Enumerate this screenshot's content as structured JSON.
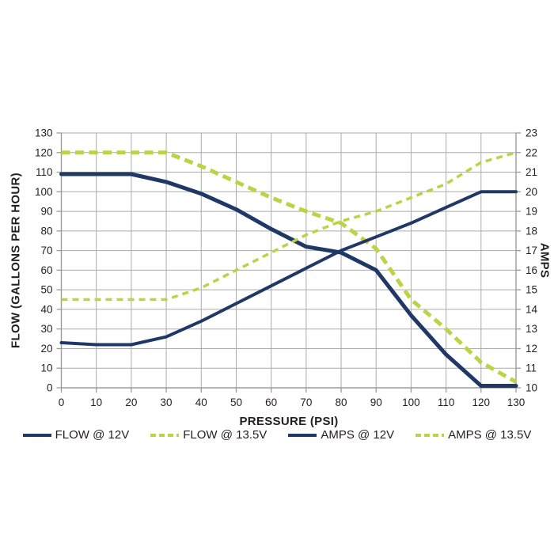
{
  "chart_data": {
    "type": "line",
    "title": "",
    "xlabel": "PRESSURE (PSI)",
    "ylabel_left": "FLOW (GALLONS PER HOUR)",
    "ylabel_right": "AMPS",
    "grid": true,
    "legend_position": "bottom",
    "xlim": [
      0,
      130
    ],
    "ylim_left": [
      0,
      130
    ],
    "ylim_right": [
      10,
      23
    ],
    "x_ticks": [
      0,
      10,
      20,
      30,
      40,
      50,
      60,
      70,
      80,
      90,
      100,
      110,
      120,
      130
    ],
    "y_left_ticks": [
      0,
      10,
      20,
      30,
      40,
      50,
      60,
      70,
      80,
      90,
      100,
      110,
      120,
      130
    ],
    "y_right_ticks": [
      10,
      11,
      12,
      13,
      14,
      15,
      16,
      17,
      18,
      19,
      20,
      21,
      22,
      23
    ],
    "x": [
      0,
      10,
      20,
      30,
      40,
      50,
      60,
      70,
      80,
      90,
      100,
      110,
      120,
      130
    ],
    "series": [
      {
        "id": "flow-12v",
        "name": "FLOW @ 12V",
        "axis": "left",
        "style": "solid",
        "color": "#1f3866",
        "width": 5,
        "values": [
          109,
          109,
          109,
          105,
          99,
          91,
          81,
          72,
          69,
          60,
          37,
          17,
          1,
          1
        ]
      },
      {
        "id": "flow-13-5v",
        "name": "FLOW @ 13.5V",
        "axis": "left",
        "style": "dashed",
        "color": "#bdd245",
        "width": 5,
        "values": [
          120,
          120,
          120,
          120,
          113,
          105,
          97,
          90,
          84,
          71,
          45,
          30,
          13,
          3
        ]
      },
      {
        "id": "amps-12v",
        "name": "AMPS @ 12V",
        "axis": "right",
        "style": "solid",
        "color": "#1f3866",
        "width": 4,
        "values": [
          12.3,
          12.2,
          12.2,
          12.6,
          13.4,
          14.3,
          15.2,
          16.1,
          17.0,
          17.7,
          18.4,
          19.2,
          20.0,
          20.0
        ]
      },
      {
        "id": "amps-13-5v",
        "name": "AMPS @ 13.5V",
        "axis": "right",
        "style": "dashed",
        "color": "#bdd245",
        "width": 3.5,
        "values": [
          14.5,
          14.5,
          14.5,
          14.5,
          15.1,
          16.0,
          16.9,
          17.8,
          18.5,
          19.0,
          19.7,
          20.4,
          21.5,
          22.0
        ]
      }
    ]
  },
  "colors": {
    "line_navy": "#1f3866",
    "line_green": "#bdd245",
    "grid": "#ababab",
    "frame": "#9b9b9b",
    "text": "#231f20",
    "background": "#ffffff"
  }
}
